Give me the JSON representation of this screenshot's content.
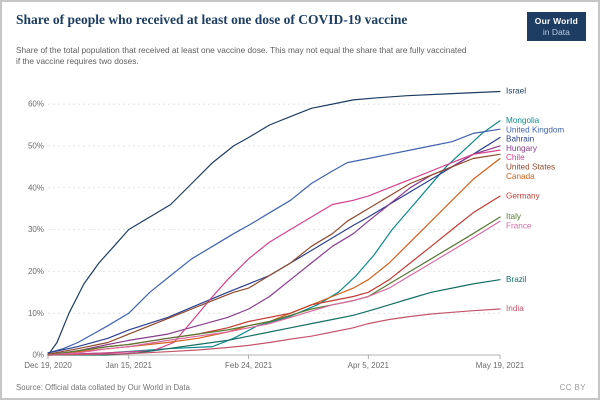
{
  "header": {
    "title": "Share of people who received at least one dose of COVID-19 vaccine",
    "subtitle": "Share of the total population that received at least one vaccine dose. This may not equal the share that are fully vaccinated if the vaccine requires two doses.",
    "logo": {
      "line1": "Our World",
      "line2": "in Data"
    }
  },
  "footer": {
    "source": "Source: Official data collated by Our World in Data",
    "license": "CC BY"
  },
  "colors": {
    "accent": "#1d3d63",
    "grid": "#dddddd",
    "axis": "#999999"
  },
  "chart_data": {
    "type": "line",
    "title": "Share of people who received at least one dose of COVID-19 vaccine",
    "xlabel": "",
    "ylabel": "",
    "x_unit": "days since Dec 19, 2020",
    "xlim": [
      0,
      151
    ],
    "ylim": [
      0,
      66
    ],
    "y_ticks": [
      0,
      10,
      20,
      30,
      40,
      50,
      60
    ],
    "y_tick_suffix": "%",
    "grid": "dashed-horizontal",
    "legend_position": "right-of-line-ends",
    "x_ticks": [
      {
        "label": "Dec 19, 2020",
        "day": 0
      },
      {
        "label": "Jan 15, 2021",
        "day": 27
      },
      {
        "label": "Feb 24, 2021",
        "day": 67
      },
      {
        "label": "Apr 5, 2021",
        "day": 107
      },
      {
        "label": "May 19, 2021",
        "day": 151
      }
    ],
    "series": [
      {
        "name": "Israel",
        "color": "#1d3d63",
        "points": [
          [
            0,
            0
          ],
          [
            3,
            3
          ],
          [
            7,
            10
          ],
          [
            12,
            17
          ],
          [
            17,
            22
          ],
          [
            22,
            26
          ],
          [
            27,
            30
          ],
          [
            34,
            33
          ],
          [
            41,
            36
          ],
          [
            48,
            41
          ],
          [
            55,
            46
          ],
          [
            62,
            50
          ],
          [
            67,
            52
          ],
          [
            74,
            55
          ],
          [
            81,
            57
          ],
          [
            88,
            59
          ],
          [
            95,
            60
          ],
          [
            102,
            61
          ],
          [
            110,
            61.5
          ],
          [
            120,
            62
          ],
          [
            135,
            62.5
          ],
          [
            151,
            63
          ]
        ]
      },
      {
        "name": "Mongolia",
        "color": "#0f8a8c",
        "points": [
          [
            0,
            0
          ],
          [
            20,
            0.5
          ],
          [
            40,
            1.5
          ],
          [
            55,
            2
          ],
          [
            62,
            4
          ],
          [
            70,
            7
          ],
          [
            80,
            9
          ],
          [
            90,
            12
          ],
          [
            97,
            15
          ],
          [
            103,
            19
          ],
          [
            109,
            24
          ],
          [
            115,
            30
          ],
          [
            121,
            35
          ],
          [
            127,
            40
          ],
          [
            133,
            45
          ],
          [
            139,
            49
          ],
          [
            145,
            53
          ],
          [
            151,
            56
          ]
        ]
      },
      {
        "name": "United Kingdom",
        "color": "#4063af",
        "points": [
          [
            0,
            0.5
          ],
          [
            5,
            1.5
          ],
          [
            10,
            3
          ],
          [
            15,
            5
          ],
          [
            20,
            7
          ],
          [
            27,
            10
          ],
          [
            34,
            15
          ],
          [
            41,
            19
          ],
          [
            48,
            23
          ],
          [
            55,
            26
          ],
          [
            62,
            29
          ],
          [
            67,
            31
          ],
          [
            74,
            34
          ],
          [
            81,
            37
          ],
          [
            88,
            41
          ],
          [
            95,
            44
          ],
          [
            100,
            46
          ],
          [
            107,
            47
          ],
          [
            114,
            48
          ],
          [
            121,
            49
          ],
          [
            128,
            50
          ],
          [
            135,
            51
          ],
          [
            142,
            53
          ],
          [
            151,
            54
          ]
        ]
      },
      {
        "name": "Bahrain",
        "color": "#2a3f8f",
        "points": [
          [
            0,
            0.5
          ],
          [
            10,
            2
          ],
          [
            20,
            4
          ],
          [
            27,
            6
          ],
          [
            40,
            9
          ],
          [
            50,
            12
          ],
          [
            60,
            15
          ],
          [
            67,
            17
          ],
          [
            74,
            19
          ],
          [
            81,
            22
          ],
          [
            88,
            25
          ],
          [
            95,
            28
          ],
          [
            102,
            31
          ],
          [
            107,
            33
          ],
          [
            114,
            36
          ],
          [
            121,
            39
          ],
          [
            128,
            42
          ],
          [
            135,
            45
          ],
          [
            142,
            48
          ],
          [
            151,
            52
          ]
        ]
      },
      {
        "name": "Hungary",
        "color": "#883c8f",
        "points": [
          [
            0,
            0
          ],
          [
            10,
            1
          ],
          [
            20,
            2.5
          ],
          [
            27,
            3.5
          ],
          [
            40,
            5
          ],
          [
            50,
            7
          ],
          [
            60,
            9
          ],
          [
            67,
            11
          ],
          [
            74,
            14
          ],
          [
            81,
            18
          ],
          [
            88,
            22
          ],
          [
            95,
            26
          ],
          [
            102,
            29
          ],
          [
            107,
            32
          ],
          [
            114,
            36
          ],
          [
            121,
            40
          ],
          [
            128,
            43
          ],
          [
            135,
            45
          ],
          [
            142,
            48
          ],
          [
            151,
            50
          ]
        ]
      },
      {
        "name": "Chile",
        "color": "#d4418e",
        "points": [
          [
            0,
            0
          ],
          [
            20,
            0.5
          ],
          [
            35,
            1
          ],
          [
            42,
            3
          ],
          [
            48,
            8
          ],
          [
            55,
            14
          ],
          [
            60,
            18
          ],
          [
            67,
            23
          ],
          [
            74,
            27
          ],
          [
            81,
            30
          ],
          [
            88,
            33
          ],
          [
            95,
            36
          ],
          [
            102,
            37
          ],
          [
            107,
            38
          ],
          [
            114,
            40
          ],
          [
            121,
            42
          ],
          [
            128,
            44
          ],
          [
            135,
            46
          ],
          [
            142,
            48
          ],
          [
            151,
            49
          ]
        ]
      },
      {
        "name": "United States",
        "color": "#8f4a2e",
        "points": [
          [
            0,
            0.2
          ],
          [
            10,
            1.5
          ],
          [
            20,
            3
          ],
          [
            27,
            5
          ],
          [
            34,
            7
          ],
          [
            41,
            9
          ],
          [
            48,
            11
          ],
          [
            55,
            13
          ],
          [
            62,
            15
          ],
          [
            67,
            16
          ],
          [
            74,
            19
          ],
          [
            81,
            22
          ],
          [
            88,
            26
          ],
          [
            95,
            29
          ],
          [
            100,
            32
          ],
          [
            107,
            35
          ],
          [
            114,
            38
          ],
          [
            121,
            41
          ],
          [
            128,
            43
          ],
          [
            135,
            45
          ],
          [
            142,
            47
          ],
          [
            151,
            48
          ]
        ]
      },
      {
        "name": "Canada",
        "color": "#d2611c",
        "points": [
          [
            0,
            0.1
          ],
          [
            10,
            0.8
          ],
          [
            20,
            1.5
          ],
          [
            27,
            2
          ],
          [
            40,
            3
          ],
          [
            50,
            4
          ],
          [
            60,
            5.5
          ],
          [
            67,
            7
          ],
          [
            74,
            8
          ],
          [
            81,
            10
          ],
          [
            88,
            12
          ],
          [
            95,
            14
          ],
          [
            102,
            16
          ],
          [
            107,
            18
          ],
          [
            114,
            22
          ],
          [
            121,
            27
          ],
          [
            128,
            32
          ],
          [
            135,
            37
          ],
          [
            142,
            42
          ],
          [
            151,
            47
          ]
        ]
      },
      {
        "name": "Germany",
        "color": "#c23c33",
        "points": [
          [
            0,
            0
          ],
          [
            10,
            1
          ],
          [
            20,
            2
          ],
          [
            27,
            2.5
          ],
          [
            40,
            4
          ],
          [
            50,
            5
          ],
          [
            60,
            6.5
          ],
          [
            67,
            8
          ],
          [
            74,
            9
          ],
          [
            81,
            10
          ],
          [
            88,
            12
          ],
          [
            95,
            13
          ],
          [
            102,
            14
          ],
          [
            107,
            15
          ],
          [
            114,
            18
          ],
          [
            121,
            22
          ],
          [
            128,
            26
          ],
          [
            135,
            30
          ],
          [
            142,
            34
          ],
          [
            151,
            38
          ]
        ]
      },
      {
        "name": "Italy",
        "color": "#577a36",
        "points": [
          [
            0,
            0
          ],
          [
            10,
            1
          ],
          [
            20,
            2
          ],
          [
            27,
            2.5
          ],
          [
            40,
            4
          ],
          [
            50,
            5
          ],
          [
            60,
            6
          ],
          [
            67,
            7
          ],
          [
            74,
            8
          ],
          [
            81,
            9.5
          ],
          [
            88,
            11
          ],
          [
            95,
            12
          ],
          [
            102,
            13
          ],
          [
            107,
            14
          ],
          [
            114,
            17
          ],
          [
            121,
            20
          ],
          [
            128,
            23
          ],
          [
            135,
            26
          ],
          [
            142,
            29
          ],
          [
            151,
            33
          ]
        ]
      },
      {
        "name": "France",
        "color": "#d96a9f",
        "points": [
          [
            0,
            0
          ],
          [
            10,
            0.5
          ],
          [
            20,
            1.5
          ],
          [
            27,
            2
          ],
          [
            40,
            3.5
          ],
          [
            50,
            4.5
          ],
          [
            60,
            5.5
          ],
          [
            67,
            6.5
          ],
          [
            74,
            7.5
          ],
          [
            81,
            9
          ],
          [
            88,
            10.5
          ],
          [
            95,
            12
          ],
          [
            102,
            13
          ],
          [
            107,
            14
          ],
          [
            114,
            16
          ],
          [
            121,
            19
          ],
          [
            128,
            22
          ],
          [
            135,
            25
          ],
          [
            142,
            28
          ],
          [
            151,
            32
          ]
        ]
      },
      {
        "name": "Brazil",
        "color": "#156f64",
        "points": [
          [
            0,
            0
          ],
          [
            20,
            0
          ],
          [
            30,
            0.5
          ],
          [
            40,
            1.5
          ],
          [
            50,
            2.5
          ],
          [
            60,
            3.5
          ],
          [
            67,
            4.5
          ],
          [
            74,
            5.5
          ],
          [
            81,
            6.5
          ],
          [
            88,
            7.5
          ],
          [
            95,
            8.5
          ],
          [
            102,
            9.5
          ],
          [
            107,
            10.5
          ],
          [
            114,
            12
          ],
          [
            121,
            13.5
          ],
          [
            128,
            15
          ],
          [
            135,
            16
          ],
          [
            142,
            17
          ],
          [
            151,
            18
          ]
        ]
      },
      {
        "name": "India",
        "color": "#c4566b",
        "points": [
          [
            0,
            0
          ],
          [
            27,
            0.3
          ],
          [
            40,
            0.8
          ],
          [
            50,
            1.2
          ],
          [
            60,
            1.8
          ],
          [
            67,
            2.3
          ],
          [
            74,
            3
          ],
          [
            81,
            3.8
          ],
          [
            88,
            4.5
          ],
          [
            95,
            5.5
          ],
          [
            102,
            6.5
          ],
          [
            107,
            7.5
          ],
          [
            114,
            8.5
          ],
          [
            121,
            9.2
          ],
          [
            128,
            9.8
          ],
          [
            135,
            10.2
          ],
          [
            142,
            10.6
          ],
          [
            151,
            11
          ]
        ]
      }
    ]
  }
}
